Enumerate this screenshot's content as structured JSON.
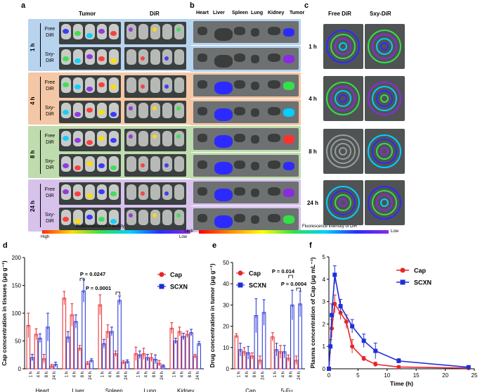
{
  "panel_a": {
    "letter": "a",
    "col_headers": [
      "Tumor",
      "DiR"
    ],
    "groups": [
      {
        "time": "1 h",
        "rows": [
          "Free\nDiR",
          "Sxy-\nDiR"
        ],
        "color": "#b8d3ee"
      },
      {
        "time": "4 h",
        "rows": [
          "Free\nDiR",
          "Sxy-\nDiR"
        ],
        "color": "#f4c7a6"
      },
      {
        "time": "8 h",
        "rows": [
          "Free\nDiR",
          "Sxy-\nDiR"
        ],
        "color": "#bfdcae"
      },
      {
        "time": "24 h",
        "rows": [
          "Free\nDiR",
          "Sxy-\nDiR"
        ],
        "color": "#d7c2ec"
      }
    ],
    "bio_scale": {
      "high": "High",
      "label": "Bioluminescence intensity",
      "low": "Low"
    }
  },
  "panel_b": {
    "letter": "b",
    "col_headers": [
      "Heart",
      "Liver",
      "Spleen",
      "Lung",
      "Kidney",
      "Tumor"
    ],
    "fluor_scale": {
      "high": "High",
      "label": "Fluorescence intensity of DiR",
      "low": "Low"
    }
  },
  "panel_c": {
    "letter": "c",
    "col_headers": [
      "Free DiR",
      "Sxy-DiR"
    ],
    "times": [
      "1 h",
      "4 h",
      "8 h",
      "24 h"
    ]
  },
  "panel_d": {
    "letter": "d",
    "chart_data": {
      "type": "bar",
      "ylabel": "Cap concentration in tissues (μg g⁻¹)",
      "ylim": [
        0,
        200
      ],
      "yticks": [
        0,
        50,
        100,
        150,
        200
      ],
      "groups": [
        "Heart",
        "Liver",
        "Spleen",
        "Lung",
        "Kidney"
      ],
      "time_labels": [
        "1 h",
        "4 h",
        "8 h",
        "24 h"
      ],
      "series": [
        {
          "name": "Cap",
          "color": "#e8262a",
          "values": [
            [
              78,
              62,
              18,
              5
            ],
            [
              127,
              97,
              37,
              10
            ],
            [
              115,
              67,
              27,
              12
            ],
            [
              27,
              27,
              20,
              10
            ],
            [
              73,
              67,
              62,
              23
            ]
          ],
          "errors": [
            [
              22,
              10,
              8,
              3
            ],
            [
              12,
              20,
              5,
              3
            ],
            [
              18,
              12,
              5,
              3
            ],
            [
              12,
              10,
              7,
              5
            ],
            [
              10,
              8,
              6,
              3
            ]
          ]
        },
        {
          "name": "SCXN",
          "color": "#1f2fd6",
          "values": [
            [
              20,
              55,
              75,
              8
            ],
            [
              57,
              85,
              140,
              15
            ],
            [
              45,
              67,
              123,
              13
            ],
            [
              25,
              20,
              17,
              5
            ],
            [
              50,
              58,
              65,
              45
            ]
          ],
          "errors": [
            [
              6,
              8,
              25,
              4
            ],
            [
              10,
              12,
              20,
              3
            ],
            [
              8,
              8,
              8,
              3
            ],
            [
              7,
              6,
              8,
              2
            ],
            [
              5,
              6,
              6,
              4
            ]
          ]
        }
      ],
      "annotations": [
        "P = 0.0247",
        "P = 0.0001"
      ],
      "legend": "top-right"
    }
  },
  "panel_e": {
    "letter": "e",
    "chart_data": {
      "type": "bar",
      "ylabel": "Drug concentration in tumor (μg g⁻¹)",
      "ylim": [
        0,
        50
      ],
      "yticks": [
        0,
        10,
        20,
        30,
        40,
        50
      ],
      "groups": [
        "Cap",
        "5-Fu"
      ],
      "time_labels": [
        "1 h",
        "4 h",
        "8 h",
        "24 h"
      ],
      "series": [
        {
          "name": "Cap",
          "color": "#e8262a",
          "values": [
            [
              15.5,
              8,
              6,
              4
            ],
            [
              15,
              8,
              5,
              4
            ]
          ],
          "errors": [
            [
              1,
              2,
              1.5,
              2
            ],
            [
              2,
              3,
              1.5,
              2
            ]
          ]
        },
        {
          "name": "SCXN",
          "color": "#1f2fd6",
          "values": [
            [
              9,
              7.5,
              25,
              26.5
            ],
            [
              9,
              8,
              30,
              30.5
            ]
          ],
          "errors": [
            [
              3,
              3,
              8,
              6
            ],
            [
              3,
              3,
              7,
              6
            ]
          ]
        }
      ],
      "annotations": [
        "P = 0.014",
        "P = 0.0004"
      ],
      "legend": "top-left"
    }
  },
  "panel_f": {
    "letter": "f",
    "chart_data": {
      "type": "line",
      "ylabel": "Plasma concentration of Cap (μg mL⁻¹)",
      "xlabel": "Time (h)",
      "xlim": [
        0,
        25
      ],
      "ylim": [
        0,
        5
      ],
      "xticks": [
        0,
        5,
        10,
        15,
        20,
        25
      ],
      "yticks": [
        0,
        1,
        2,
        3,
        4,
        5
      ],
      "series": [
        {
          "name": "Cap",
          "color": "#e8262a",
          "x": [
            0,
            0.25,
            0.5,
            1,
            2,
            3,
            4,
            6,
            8,
            12,
            24
          ],
          "y": [
            0,
            1,
            1.8,
            2.9,
            2.5,
            2.1,
            1,
            0.45,
            0.2,
            0.08,
            0.03
          ],
          "err": [
            0,
            0.3,
            0.4,
            0.4,
            0.3,
            0.3,
            0.3,
            0.1,
            0.1,
            0.05,
            0.02
          ]
        },
        {
          "name": "SCXN",
          "color": "#1f2fd6",
          "x": [
            0,
            0.25,
            0.5,
            1,
            2,
            4,
            6,
            8,
            12,
            24
          ],
          "y": [
            0,
            1,
            2.4,
            4.2,
            2.8,
            1.9,
            1.25,
            0.8,
            0.35,
            0.07
          ],
          "err": [
            0,
            0.3,
            0.5,
            0.4,
            0.3,
            0.3,
            0.3,
            0.35,
            0.1,
            0.03
          ]
        }
      ],
      "legend": "top-right"
    }
  }
}
